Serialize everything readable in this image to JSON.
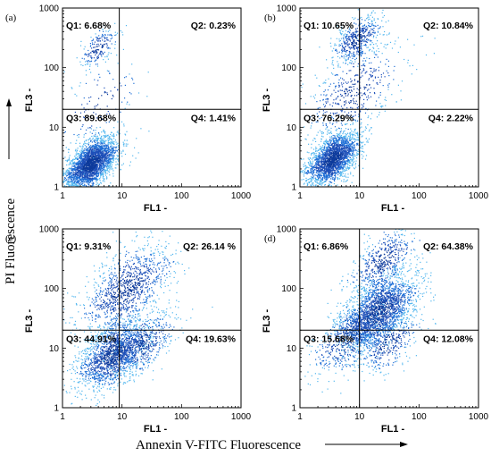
{
  "figure": {
    "y_global_label": "PI Fluorescence",
    "x_global_label": "Annexin V-FITC Fluorescence"
  },
  "chart_data": [
    {
      "type": "scatter",
      "panel": "(a)",
      "xlabel": "FL1",
      "ylabel": "FL3",
      "axis_suffix": "-",
      "xscale": "log",
      "yscale": "log",
      "xlim": [
        1,
        1000
      ],
      "ylim": [
        1,
        1000
      ],
      "xticks": [
        "1",
        "10",
        "100",
        "1000"
      ],
      "yticks": [
        "1",
        "10",
        "100",
        "1000"
      ],
      "gate": {
        "x": 9,
        "y": 20
      },
      "quadrants": {
        "Q1": "Q1: 6.68%",
        "Q2": "Q2: 0.23%",
        "Q3": "Q3: 89.68%",
        "Q4": "Q4: 1.41%"
      },
      "populations": [
        {
          "cx": 3,
          "cy": 2.5,
          "spread": 0.22,
          "n": 2600
        },
        {
          "cx": 4,
          "cy": 220,
          "spread": 0.16,
          "n": 200
        },
        {
          "cx": 4,
          "cy": 25,
          "spread": 0.35,
          "n": 120
        }
      ]
    },
    {
      "type": "scatter",
      "panel": "(b)",
      "xlabel": "FL1",
      "ylabel": "FL3",
      "axis_suffix": "-",
      "xscale": "log",
      "yscale": "log",
      "xlim": [
        1,
        1000
      ],
      "ylim": [
        1,
        1000
      ],
      "xticks": [
        "1",
        "10",
        "100",
        "1000"
      ],
      "yticks": [
        "1",
        "10",
        "100",
        "1000"
      ],
      "gate": {
        "x": 10,
        "y": 20
      },
      "quadrants": {
        "Q1": "Q1: 10.65%",
        "Q2": "Q2: 10.84%",
        "Q3": "Q3: 76.29%",
        "Q4": "Q4: 2.22%"
      },
      "populations": [
        {
          "cx": 3.5,
          "cy": 3,
          "spread": 0.22,
          "n": 2200
        },
        {
          "cx": 9,
          "cy": 300,
          "spread": 0.2,
          "n": 500
        },
        {
          "cx": 8,
          "cy": 40,
          "spread": 0.4,
          "n": 500
        }
      ]
    },
    {
      "type": "scatter",
      "panel": "(c)",
      "xlabel": "FL1",
      "ylabel": "FL3",
      "axis_suffix": "-",
      "xscale": "log",
      "yscale": "log",
      "xlim": [
        1,
        1000
      ],
      "ylim": [
        1,
        1000
      ],
      "xticks": [
        "1",
        "10",
        "100",
        "1000"
      ],
      "yticks": [
        "1",
        "10",
        "100",
        "1000"
      ],
      "gate": {
        "x": 9,
        "y": 20
      },
      "quadrants": {
        "Q1": "Q1: 9.31%",
        "Q2": "Q2: 26.14 %",
        "Q3": "Q3: 44.91%",
        "Q4": "Q4: 19.63%"
      },
      "populations": [
        {
          "cx": 7,
          "cy": 8,
          "spread": 0.3,
          "n": 1700
        },
        {
          "cx": 12,
          "cy": 100,
          "spread": 0.38,
          "n": 1100
        },
        {
          "cx": 22,
          "cy": 12,
          "spread": 0.28,
          "n": 500
        }
      ]
    },
    {
      "type": "scatter",
      "panel": "(d)",
      "xlabel": "FL1",
      "ylabel": "FL3",
      "axis_suffix": "-",
      "xscale": "log",
      "yscale": "log",
      "xlim": [
        1,
        1000
      ],
      "ylim": [
        1,
        1000
      ],
      "xticks": [
        "1",
        "10",
        "100",
        "1000"
      ],
      "yticks": [
        "1",
        "10",
        "100",
        "1000"
      ],
      "gate": {
        "x": 10,
        "y": 20
      },
      "quadrants": {
        "Q1": "Q1: 6.86%",
        "Q2": "Q2: 64.38%",
        "Q3": "Q3: 15.68%",
        "Q4": "Q4: 12.08%"
      },
      "populations": [
        {
          "cx": 20,
          "cy": 40,
          "spread": 0.32,
          "n": 2300
        },
        {
          "cx": 6,
          "cy": 14,
          "spread": 0.3,
          "n": 500
        },
        {
          "cx": 30,
          "cy": 12,
          "spread": 0.25,
          "n": 350
        },
        {
          "cx": 25,
          "cy": 300,
          "spread": 0.28,
          "n": 500
        }
      ]
    }
  ]
}
